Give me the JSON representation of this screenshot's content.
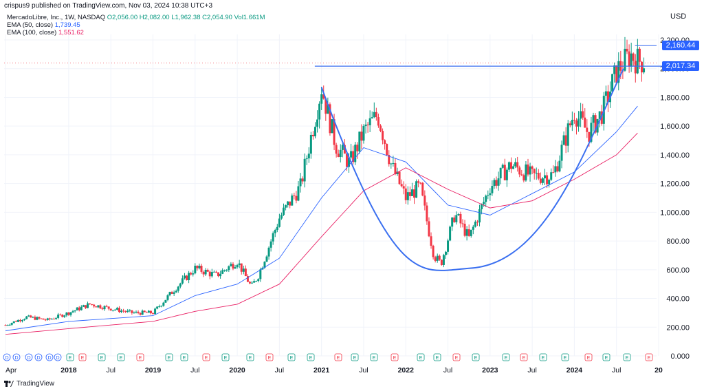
{
  "header": {
    "published": "crispus9 published on TradingView.com, Nov 03, 2024 10:38 UTC+3"
  },
  "legend": {
    "symbol": "MercadoLibre, Inc., 1W, NASDAQ",
    "ohlc": "O2,056.00 H2,082.00 L1,962.38 C2,054.90 Vol1.661M",
    "ema50_label": "EMA (50, close)",
    "ema50_value": "1,739.45",
    "ema100_label": "EMA (100, close)",
    "ema100_value": "1,551.62"
  },
  "axis": {
    "currency": "USD"
  },
  "footer": {
    "brand": "TradingView"
  },
  "colors": {
    "up": "#089981",
    "down": "#f23645",
    "ema50": "#2962ff",
    "ema100": "#e91e63",
    "pattern": "#3a6ff0",
    "tag": "#2962ff",
    "grid": "#f0f3fa"
  },
  "chart_data": {
    "type": "candlestick",
    "title": "MercadoLibre, Inc., 1W, NASDAQ",
    "ylim": [
      0,
      2300
    ],
    "y_ticks": [
      "0.000",
      "200.00",
      "400.00",
      "600.00",
      "800.00",
      "1,000.00",
      "1,200.00",
      "1,400.00",
      "1,600.00",
      "1,800.00",
      "2,000.00",
      "2,200.00"
    ],
    "x_ticks": [
      "Apr",
      "2018",
      "Jul",
      "2019",
      "Jul",
      "2020",
      "Jul",
      "2021",
      "Jul",
      "2022",
      "Jul",
      "2023",
      "Jul",
      "2024",
      "Jul",
      "20"
    ],
    "price_tags": [
      {
        "label": "2,160.44",
        "value": 2160.44
      },
      {
        "label": "2,017.34",
        "value": 2017.34
      }
    ],
    "series": [
      {
        "name": "MercadoLibre (close)",
        "points": [
          [
            "2017-04",
            215
          ],
          [
            "2017-07",
            270
          ],
          [
            "2017-10",
            250
          ],
          [
            "2018-01",
            300
          ],
          [
            "2018-04",
            360
          ],
          [
            "2018-07",
            330
          ],
          [
            "2018-10",
            300
          ],
          [
            "2019-01",
            300
          ],
          [
            "2019-04",
            460
          ],
          [
            "2019-07",
            610
          ],
          [
            "2019-10",
            560
          ],
          [
            "2020-01",
            660
          ],
          [
            "2020-03",
            480
          ],
          [
            "2020-04",
            560
          ],
          [
            "2020-07",
            960
          ],
          [
            "2020-10",
            1180
          ],
          [
            "2021-01",
            1870
          ],
          [
            "2021-03",
            1470
          ],
          [
            "2021-05",
            1340
          ],
          [
            "2021-07",
            1560
          ],
          [
            "2021-09",
            1680
          ],
          [
            "2021-11",
            1320
          ],
          [
            "2022-01",
            1100
          ],
          [
            "2022-03",
            1180
          ],
          [
            "2022-05",
            700
          ],
          [
            "2022-06",
            640
          ],
          [
            "2022-08",
            990
          ],
          [
            "2022-10",
            820
          ],
          [
            "2023-01",
            1180
          ],
          [
            "2023-04",
            1330
          ],
          [
            "2023-07",
            1250
          ],
          [
            "2023-10",
            1260
          ],
          [
            "2024-01",
            1700
          ],
          [
            "2024-03",
            1550
          ],
          [
            "2024-05",
            1700
          ],
          [
            "2024-07",
            1980
          ],
          [
            "2024-09",
            2100
          ],
          [
            "2024-10",
            2055
          ]
        ]
      },
      {
        "name": "EMA (50, close)",
        "points": [
          [
            "2017-04",
            175
          ],
          [
            "2018-01",
            240
          ],
          [
            "2019-01",
            280
          ],
          [
            "2019-07",
            420
          ],
          [
            "2020-01",
            500
          ],
          [
            "2020-07",
            680
          ],
          [
            "2021-01",
            1100
          ],
          [
            "2021-07",
            1450
          ],
          [
            "2022-01",
            1350
          ],
          [
            "2022-07",
            1050
          ],
          [
            "2023-01",
            980
          ],
          [
            "2023-07",
            1130
          ],
          [
            "2024-01",
            1280
          ],
          [
            "2024-07",
            1560
          ],
          [
            "2024-10",
            1739
          ]
        ]
      },
      {
        "name": "EMA (100, close)",
        "points": [
          [
            "2017-04",
            150
          ],
          [
            "2018-01",
            190
          ],
          [
            "2019-01",
            240
          ],
          [
            "2019-07",
            310
          ],
          [
            "2020-01",
            360
          ],
          [
            "2020-07",
            500
          ],
          [
            "2021-01",
            830
          ],
          [
            "2021-07",
            1150
          ],
          [
            "2022-01",
            1310
          ],
          [
            "2022-07",
            1160
          ],
          [
            "2023-01",
            1030
          ],
          [
            "2023-07",
            1080
          ],
          [
            "2024-01",
            1230
          ],
          [
            "2024-07",
            1400
          ],
          [
            "2024-10",
            1552
          ]
        ]
      }
    ],
    "annotations": [
      {
        "type": "horizontal_line",
        "value": 2017.34
      },
      {
        "type": "cup",
        "from": "2021-01",
        "bottom": "2022-10",
        "to": "2024-08",
        "low": 610
      },
      {
        "type": "horizontal_line",
        "value": 2160.44
      }
    ],
    "event_markers": [
      "D",
      "D",
      "D",
      "D",
      "D",
      "D",
      "E",
      "E",
      "E",
      "E",
      "E",
      "E",
      "E",
      "E",
      "E",
      "E",
      "E",
      "E",
      "E",
      "E",
      "E",
      "E",
      "E",
      "E",
      "E",
      "E",
      "E",
      "E",
      "E",
      "E",
      "E"
    ]
  }
}
